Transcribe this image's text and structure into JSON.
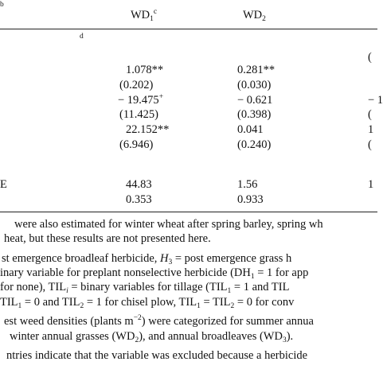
{
  "table": {
    "header_note": "b",
    "columns": [
      [
        {
          "text": "WD"
        },
        {
          "text": "1",
          "sub": true
        },
        {
          "text": "c",
          "sup": true
        }
      ],
      [
        {
          "text": "WD"
        },
        {
          "text": "2",
          "sub": true
        }
      ]
    ],
    "section_note": "d",
    "rows": [
      {
        "cells": [
          null,
          null,
          "("
        ]
      },
      {
        "cells": [
          "1.078**",
          "0.281**",
          null
        ]
      },
      {
        "cells": [
          "(0.202)",
          "(0.030)",
          null
        ]
      },
      {
        "cells": [
          [
            {
              "text": "− 19.475"
            },
            {
              "text": "+",
              "sup": true
            }
          ],
          "− 0.621",
          "− 1"
        ]
      },
      {
        "cells": [
          "(11.425)",
          "(0.398)",
          "("
        ]
      },
      {
        "cells": [
          "22.152**",
          "0.041",
          "1"
        ]
      },
      {
        "cells": [
          "(6.946)",
          "(0.240)",
          "("
        ]
      },
      {
        "label": "E",
        "cells": [
          "44.83",
          "1.56",
          "1"
        ]
      },
      {
        "cells": [
          "0.353",
          "0.933",
          null
        ]
      }
    ],
    "footnotes": [
      [
        {
          "text": "were also estimated for winter wheat after spring barley, spring wh"
        }
      ],
      [
        {
          "text": "heat, but these results are not presented here."
        }
      ],
      [
        {
          "text": "st emergence broadleaf herbicide, "
        },
        {
          "text": "H",
          "italic": true
        },
        {
          "text": "3",
          "sub": true
        },
        {
          "text": " = post emergence grass h"
        }
      ],
      [
        {
          "text": "inary variable for preplant nonselective herbicide (DH"
        },
        {
          "text": "1",
          "sub": true
        },
        {
          "text": " = 1 for app"
        }
      ],
      [
        {
          "text": "for none), TIL"
        },
        {
          "text": "i",
          "sub": true,
          "italic": true
        },
        {
          "text": " = binary variables for tillage (TIL"
        },
        {
          "text": "1",
          "sub": true
        },
        {
          "text": " = 1 and TIL"
        }
      ],
      [
        {
          "text": "TIL"
        },
        {
          "text": "1",
          "sub": true
        },
        {
          "text": " = 0 and TIL"
        },
        {
          "text": "2",
          "sub": true
        },
        {
          "text": " = 1 for chisel plow, TIL"
        },
        {
          "text": "1",
          "sub": true
        },
        {
          "text": " = TIL"
        },
        {
          "text": "2",
          "sub": true
        },
        {
          "text": " = 0 for conv"
        }
      ],
      [
        {
          "text": "est weed densities (plants m"
        },
        {
          "text": "−2",
          "sup": true
        },
        {
          "text": ") were categorized for summer annua"
        }
      ],
      [
        {
          "text": "winter annual grasses (WD"
        },
        {
          "text": "2",
          "sub": true
        },
        {
          "text": "), and annual broadleaves (WD"
        },
        {
          "text": "3",
          "sub": true
        },
        {
          "text": ")."
        }
      ],
      [
        {
          "text": "ntries indicate that the variable was excluded because a herbicide"
        }
      ]
    ]
  }
}
